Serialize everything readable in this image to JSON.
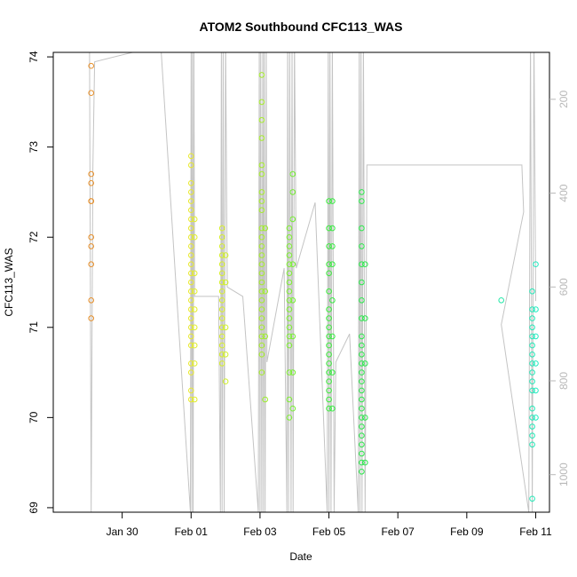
{
  "chart_data": {
    "type": "scatter",
    "title": "ATOM2 Southbound CFC113_WAS",
    "xlabel": "Date",
    "ylabel": "CFC113_WAS",
    "x_unit": "days since Jan 30",
    "xlim": [
      -2.0,
      12.4
    ],
    "ylim": [
      68.95,
      74.05
    ],
    "x_ticks": [
      {
        "value": 0,
        "label": "Jan 30"
      },
      {
        "value": 2,
        "label": "Feb 01"
      },
      {
        "value": 4,
        "label": "Feb 03"
      },
      {
        "value": 6,
        "label": "Feb 05"
      },
      {
        "value": 8,
        "label": "Feb 07"
      },
      {
        "value": 10,
        "label": "Feb 09"
      },
      {
        "value": 12,
        "label": "Feb 11"
      }
    ],
    "y_ticks": [
      69,
      70,
      71,
      72,
      73,
      74
    ],
    "secondary_axis": {
      "label": "",
      "range": [
        100,
        1080
      ],
      "reversed": true,
      "ticks": [
        200,
        400,
        600,
        800,
        1000
      ],
      "color": "#b8b8b8"
    },
    "groups": [
      {
        "x": -0.9,
        "color": "#e8902a",
        "values": [
          73.9,
          73.6,
          72.7,
          72.6,
          72.4,
          72.4,
          72.0,
          71.9,
          71.7,
          71.3,
          71.1
        ]
      },
      {
        "x": 2.0,
        "color": "#e9e92a",
        "values": [
          72.9,
          72.8,
          72.6,
          72.5,
          72.4,
          72.3,
          72.2,
          72.1,
          72.0,
          71.9,
          71.8,
          71.7,
          71.6,
          71.5,
          71.4,
          71.3,
          71.2,
          71.1,
          71.0,
          70.9,
          70.8,
          70.6,
          70.5,
          70.3,
          70.2
        ]
      },
      {
        "x": 2.1,
        "color": "#e0ee2a",
        "values": [
          72.2,
          72.0,
          71.6,
          71.4,
          71.2,
          71.0,
          70.8,
          70.6,
          70.2
        ]
      },
      {
        "x": 2.9,
        "color": "#d8f02a",
        "values": [
          72.1,
          72.0,
          71.9,
          71.8,
          71.7,
          71.6,
          71.5,
          71.4,
          71.3,
          71.2,
          71.1,
          71.0,
          70.9,
          70.8,
          70.7,
          70.6
        ]
      },
      {
        "x": 3.0,
        "color": "#d0f02a",
        "values": [
          71.8,
          71.5,
          71.0,
          70.7,
          70.4
        ]
      },
      {
        "x": 4.05,
        "color": "#a6ee2a",
        "values": [
          73.8,
          73.5,
          73.3,
          73.1,
          72.8,
          72.7,
          72.5,
          72.4,
          72.3,
          72.1,
          72.0,
          71.9,
          71.8,
          71.7,
          71.6,
          71.5,
          71.4,
          71.3,
          71.2,
          71.1,
          71.0,
          70.9,
          70.8,
          70.7,
          70.5
        ]
      },
      {
        "x": 4.15,
        "color": "#9cee2a",
        "values": [
          72.1,
          71.4,
          70.9,
          70.2
        ]
      },
      {
        "x": 4.85,
        "color": "#7ef030",
        "values": [
          72.1,
          72.0,
          71.9,
          71.8,
          71.7,
          71.6,
          71.5,
          71.4,
          71.3,
          71.2,
          71.1,
          71.0,
          70.9,
          70.8,
          70.5,
          70.2,
          70.0
        ]
      },
      {
        "x": 4.95,
        "color": "#74f030",
        "values": [
          72.7,
          72.5,
          72.2,
          71.7,
          71.3,
          70.9,
          70.5,
          70.1
        ]
      },
      {
        "x": 6.0,
        "color": "#3cec3c",
        "values": [
          72.4,
          72.1,
          71.9,
          71.7,
          71.6,
          71.4,
          71.2,
          71.1,
          71.0,
          70.9,
          70.8,
          70.7,
          70.6,
          70.5,
          70.4,
          70.3,
          70.2,
          70.1
        ]
      },
      {
        "x": 6.1,
        "color": "#34ec40",
        "values": [
          72.4,
          72.1,
          71.9,
          71.7,
          71.3,
          70.9,
          70.5,
          70.1
        ]
      },
      {
        "x": 6.95,
        "color": "#2aea4a",
        "values": [
          72.5,
          72.4,
          72.1,
          71.9,
          71.7,
          71.5,
          71.3,
          71.1,
          70.9,
          70.8,
          70.7,
          70.6,
          70.5,
          70.4,
          70.3,
          70.2,
          70.1,
          70.0,
          69.9,
          69.8,
          69.7,
          69.6,
          69.5,
          69.4
        ]
      },
      {
        "x": 7.05,
        "color": "#2ce84e",
        "values": [
          71.7,
          71.1,
          70.6,
          70.0,
          69.5
        ]
      },
      {
        "x": 11.0,
        "color": "#24e8a8",
        "values": [
          71.3
        ]
      },
      {
        "x": 11.9,
        "color": "#22eab8",
        "values": [
          71.4,
          71.2,
          71.1,
          71.0,
          70.9,
          70.8,
          70.7,
          70.6,
          70.5,
          70.4,
          70.3,
          70.1,
          70.0,
          69.9,
          69.8,
          69.7,
          69.1
        ]
      },
      {
        "x": 12.0,
        "color": "#22eac0",
        "values": [
          71.7,
          71.2,
          70.9,
          70.6,
          70.3,
          70.0
        ]
      }
    ],
    "altitude_track": {
      "color": "#c4c4c4",
      "points": [
        [
          -0.95,
          60
        ],
        [
          -0.9,
          1080
        ],
        [
          -0.85,
          350
        ],
        [
          -0.8,
          120
        ],
        [
          0.3,
          100
        ],
        [
          1.1,
          60
        ],
        [
          1.98,
          1080
        ],
        [
          2.0,
          60
        ],
        [
          2.02,
          1080
        ],
        [
          2.04,
          60
        ],
        [
          2.06,
          1080
        ],
        [
          2.08,
          60
        ],
        [
          2.1,
          620
        ],
        [
          2.2,
          620
        ],
        [
          2.8,
          620
        ],
        [
          2.85,
          1080
        ],
        [
          2.88,
          60
        ],
        [
          2.9,
          1080
        ],
        [
          2.93,
          60
        ],
        [
          2.96,
          1080
        ],
        [
          3.0,
          60
        ],
        [
          3.05,
          600
        ],
        [
          3.5,
          620
        ],
        [
          3.95,
          1080
        ],
        [
          3.98,
          60
        ],
        [
          4.0,
          1080
        ],
        [
          4.02,
          60
        ],
        [
          4.05,
          1080
        ],
        [
          4.08,
          60
        ],
        [
          4.1,
          1080
        ],
        [
          4.12,
          60
        ],
        [
          4.15,
          1080
        ],
        [
          4.18,
          60
        ],
        [
          4.2,
          760
        ],
        [
          4.7,
          560
        ],
        [
          4.78,
          1080
        ],
        [
          4.8,
          60
        ],
        [
          4.83,
          1080
        ],
        [
          4.86,
          60
        ],
        [
          4.9,
          1080
        ],
        [
          4.93,
          60
        ],
        [
          4.96,
          1080
        ],
        [
          5.0,
          60
        ],
        [
          5.05,
          560
        ],
        [
          5.6,
          420
        ],
        [
          5.95,
          1080
        ],
        [
          5.98,
          60
        ],
        [
          6.0,
          1080
        ],
        [
          6.03,
          60
        ],
        [
          6.06,
          1080
        ],
        [
          6.1,
          60
        ],
        [
          6.15,
          1080
        ],
        [
          6.2,
          760
        ],
        [
          6.6,
          700
        ],
        [
          6.85,
          1080
        ],
        [
          6.88,
          60
        ],
        [
          6.9,
          1080
        ],
        [
          6.93,
          60
        ],
        [
          6.96,
          1080
        ],
        [
          7.0,
          60
        ],
        [
          7.05,
          1080
        ],
        [
          7.1,
          340
        ],
        [
          7.2,
          340
        ],
        [
          11.6,
          340
        ],
        [
          11.65,
          440
        ],
        [
          11.0,
          680
        ],
        [
          11.8,
          1080
        ],
        [
          11.85,
          60
        ],
        [
          11.9,
          1080
        ],
        [
          11.95,
          60
        ],
        [
          12.0,
          630
        ]
      ]
    }
  }
}
